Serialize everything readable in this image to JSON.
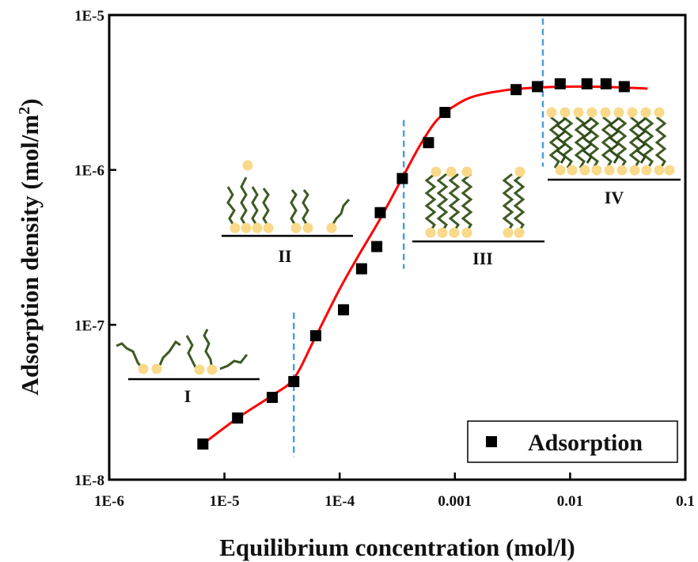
{
  "chart_data": {
    "type": "scatter",
    "xlabel": "Equilibrium concentration (mol/l)",
    "ylabel": "Adsorption density",
    "ylabel_unit_prefix": "(mol/m",
    "ylabel_unit_sup": "2",
    "ylabel_unit_suffix": ")",
    "x_scale": "log",
    "y_scale": "log",
    "xlim": [
      1e-06,
      0.1
    ],
    "ylim": [
      1e-08,
      1e-05
    ],
    "x_ticks": [
      {
        "value": 1e-06,
        "label": "1E-6"
      },
      {
        "value": 1e-05,
        "label": "1E-5"
      },
      {
        "value": 0.0001,
        "label": "1E-4"
      },
      {
        "value": 0.001,
        "label": "0.001"
      },
      {
        "value": 0.01,
        "label": "0.01"
      },
      {
        "value": 0.1,
        "label": "0.1"
      }
    ],
    "y_ticks": [
      {
        "value": 1e-08,
        "label": "1E-8"
      },
      {
        "value": 1e-07,
        "label": "1E-7"
      },
      {
        "value": 1e-06,
        "label": "1E-6"
      },
      {
        "value": 1e-05,
        "label": "1E-5"
      }
    ],
    "grid": false,
    "legend_position": "bottom-right",
    "series": [
      {
        "name": "Adsorption",
        "marker": "square",
        "color": "#000000",
        "points": [
          {
            "x": 6.5e-06,
            "y": 1.7e-08
          },
          {
            "x": 1.3e-05,
            "y": 2.5e-08
          },
          {
            "x": 2.6e-05,
            "y": 3.4e-08
          },
          {
            "x": 4e-05,
            "y": 4.3e-08
          },
          {
            "x": 6.2e-05,
            "y": 8.5e-08
          },
          {
            "x": 0.000108,
            "y": 1.25e-07
          },
          {
            "x": 0.000155,
            "y": 2.3e-07
          },
          {
            "x": 0.00021,
            "y": 3.2e-07
          },
          {
            "x": 0.000225,
            "y": 5.3e-07
          },
          {
            "x": 0.00035,
            "y": 8.8e-07
          },
          {
            "x": 0.00059,
            "y": 1.5e-06
          },
          {
            "x": 0.00082,
            "y": 2.35e-06
          },
          {
            "x": 0.0034,
            "y": 3.3e-06
          },
          {
            "x": 0.0052,
            "y": 3.45e-06
          },
          {
            "x": 0.0082,
            "y": 3.6e-06
          },
          {
            "x": 0.014,
            "y": 3.6e-06
          },
          {
            "x": 0.0205,
            "y": 3.6e-06
          },
          {
            "x": 0.0295,
            "y": 3.45e-06
          }
        ]
      }
    ],
    "fit_curve": {
      "color": "#ff0000",
      "points": [
        {
          "x": 6.5e-06,
          "y": 1.7e-08
        },
        {
          "x": 1.3e-05,
          "y": 2.5e-08
        },
        {
          "x": 2.6e-05,
          "y": 3.5e-08
        },
        {
          "x": 4e-05,
          "y": 4.5e-08
        },
        {
          "x": 6e-05,
          "y": 8e-08
        },
        {
          "x": 0.0001,
          "y": 1.7e-07
        },
        {
          "x": 0.00015,
          "y": 2.9e-07
        },
        {
          "x": 0.00022,
          "y": 4.7e-07
        },
        {
          "x": 0.00035,
          "y": 8.9e-07
        },
        {
          "x": 0.0005,
          "y": 1.45e-06
        },
        {
          "x": 0.0007,
          "y": 2.1e-06
        },
        {
          "x": 0.001,
          "y": 2.6e-06
        },
        {
          "x": 0.0015,
          "y": 3e-06
        },
        {
          "x": 0.003,
          "y": 3.3e-06
        },
        {
          "x": 0.006,
          "y": 3.42e-06
        },
        {
          "x": 0.012,
          "y": 3.45e-06
        },
        {
          "x": 0.025,
          "y": 3.42e-06
        },
        {
          "x": 0.047,
          "y": 3.35e-06
        }
      ]
    },
    "region_boundaries": [
      {
        "x": 4e-05,
        "color": "#4a9fd8"
      },
      {
        "x": 0.00036,
        "color": "#4a9fd8"
      },
      {
        "x": 0.0058,
        "color": "#4a9fd8"
      }
    ],
    "region_labels": [
      "I",
      "II",
      "III",
      "IV"
    ]
  }
}
